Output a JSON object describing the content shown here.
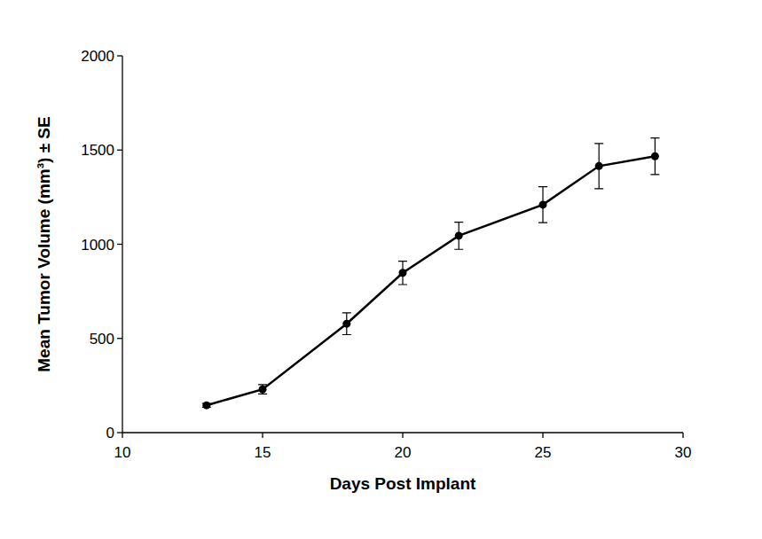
{
  "chart_data": {
    "type": "line",
    "x_label": "Days Post Implant",
    "y_label": "Mean Tumor Volume (mm³) ± SE",
    "x": [
      13,
      15,
      18,
      20,
      22,
      25,
      27,
      29
    ],
    "values": [
      145,
      230,
      578,
      848,
      1045,
      1210,
      1415,
      1467
    ],
    "errors": [
      10,
      25,
      58,
      62,
      72,
      95,
      120,
      97
    ],
    "color": "#000000",
    "marker": "circle",
    "line_style": "solid",
    "xlim": [
      10,
      30
    ],
    "xticks": [
      10,
      15,
      20,
      25,
      30
    ],
    "ylim": [
      0,
      2000
    ],
    "yticks": [
      0,
      500,
      1000,
      1500,
      2000
    ],
    "grid": false
  }
}
